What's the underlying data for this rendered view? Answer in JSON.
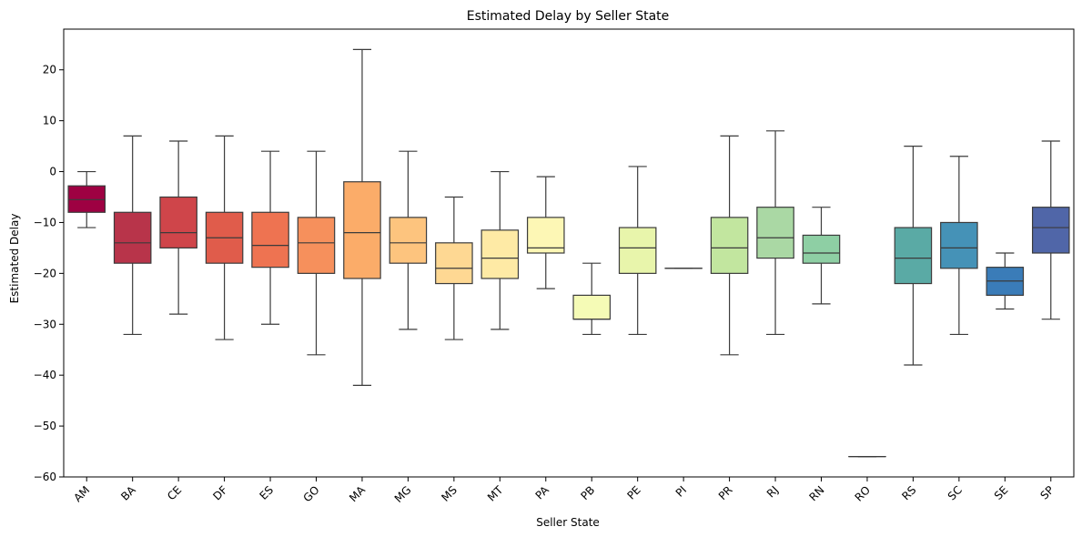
{
  "chart_data": {
    "type": "box",
    "title": "Estimated Delay by Seller State",
    "xlabel": "Seller State",
    "ylabel": "Estimated Delay",
    "ylim": [
      -60,
      28
    ],
    "yticks": [
      20,
      10,
      0,
      -10,
      -20,
      -30,
      -40,
      -50,
      -60
    ],
    "grid": false,
    "legend": "none",
    "categories": [
      "AM",
      "BA",
      "CE",
      "DF",
      "ES",
      "GO",
      "MA",
      "MG",
      "MS",
      "MT",
      "PA",
      "PB",
      "PE",
      "PI",
      "PR",
      "RJ",
      "RN",
      "RO",
      "RS",
      "SC",
      "SE",
      "SP"
    ],
    "boxes": [
      {
        "state": "AM",
        "whisker_low": -11,
        "q1": -8,
        "median": -5.5,
        "q3": -2.8,
        "whisker_high": 0,
        "color": "#9e0142"
      },
      {
        "state": "BA",
        "whisker_low": -32,
        "q1": -18,
        "median": -14,
        "q3": -8,
        "whisker_high": 7,
        "color": "#b8344a"
      },
      {
        "state": "CE",
        "whisker_low": -28,
        "q1": -15,
        "median": -12,
        "q3": -5,
        "whisker_high": 6,
        "color": "#cf454a"
      },
      {
        "state": "DF",
        "whisker_low": -33,
        "q1": -18,
        "median": -13,
        "q3": -8,
        "whisker_high": 7,
        "color": "#e05c4b"
      },
      {
        "state": "ES",
        "whisker_low": -30,
        "q1": -18.8,
        "median": -14.5,
        "q3": -8,
        "whisker_high": 4,
        "color": "#ee7351"
      },
      {
        "state": "GO",
        "whisker_low": -36,
        "q1": -20,
        "median": -14,
        "q3": -9,
        "whisker_high": 4,
        "color": "#f6905c"
      },
      {
        "state": "MA",
        "whisker_low": -42,
        "q1": -21,
        "median": -12,
        "q3": -2,
        "whisker_high": 24,
        "color": "#fbac69"
      },
      {
        "state": "MG",
        "whisker_low": -31,
        "q1": -18,
        "median": -14,
        "q3": -9,
        "whisker_high": 4,
        "color": "#fdc47e"
      },
      {
        "state": "MS",
        "whisker_low": -33,
        "q1": -22,
        "median": -19,
        "q3": -14,
        "whisker_high": -5,
        "color": "#fed893"
      },
      {
        "state": "MT",
        "whisker_low": -31,
        "q1": -21,
        "median": -17,
        "q3": -11.5,
        "whisker_high": 0,
        "color": "#feeaa5"
      },
      {
        "state": "PA",
        "whisker_low": -23,
        "q1": -16,
        "median": -15,
        "q3": -9,
        "whisker_high": -1,
        "color": "#fdf7b5"
      },
      {
        "state": "PB",
        "whisker_low": -32,
        "q1": -29,
        "median": -29,
        "q3": -24.3,
        "whisker_high": -18,
        "color": "#f5fbb6"
      },
      {
        "state": "PE",
        "whisker_low": -32,
        "q1": -20,
        "median": -15,
        "q3": -11,
        "whisker_high": 1,
        "color": "#e8f5ab"
      },
      {
        "state": "PI",
        "whisker_low": -19,
        "q1": -19,
        "median": -19,
        "q3": -19,
        "whisker_high": -19,
        "color": "#d6ee9b"
      },
      {
        "state": "PR",
        "whisker_low": -36,
        "q1": -20,
        "median": -15,
        "q3": -9,
        "whisker_high": 7,
        "color": "#c2e69f"
      },
      {
        "state": "RJ",
        "whisker_low": -32,
        "q1": -17,
        "median": -13,
        "q3": -7,
        "whisker_high": 8,
        "color": "#aad8a4"
      },
      {
        "state": "RN",
        "whisker_low": -26,
        "q1": -18,
        "median": -16,
        "q3": -12.5,
        "whisker_high": -7,
        "color": "#8ecfa4"
      },
      {
        "state": "RO",
        "whisker_low": -56,
        "q1": -56,
        "median": -56,
        "q3": -56,
        "whisker_high": -56,
        "color": "#72c3a7"
      },
      {
        "state": "RS",
        "whisker_low": -38,
        "q1": -22,
        "median": -17,
        "q3": -11,
        "whisker_high": 5,
        "color": "#5aaaa5"
      },
      {
        "state": "SC",
        "whisker_low": -32,
        "q1": -19,
        "median": -15,
        "q3": -10,
        "whisker_high": 3,
        "color": "#4592b7"
      },
      {
        "state": "SE",
        "whisker_low": -27,
        "q1": -24.3,
        "median": -21.5,
        "q3": -18.8,
        "whisker_high": -16,
        "color": "#3a7cb8"
      },
      {
        "state": "SP",
        "whisker_low": -29,
        "q1": -16,
        "median": -11,
        "q3": -7,
        "whisker_high": 6,
        "color": "#5066a8"
      }
    ]
  }
}
